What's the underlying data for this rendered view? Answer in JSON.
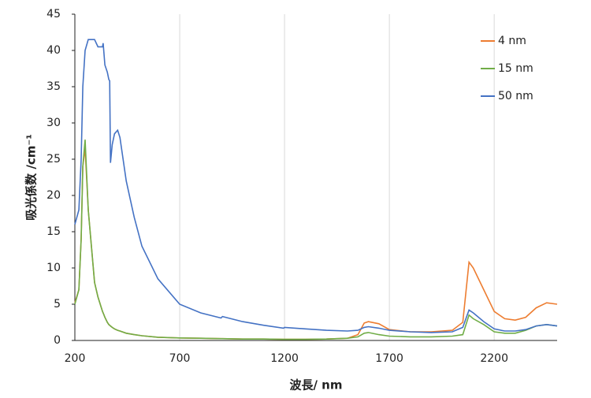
{
  "chart_data": {
    "type": "line",
    "x_label": "波長/ nm",
    "y_label": "吸光係数 /cm⁻¹",
    "x": [
      200,
      219,
      230,
      238,
      249,
      264,
      294,
      310,
      332,
      335,
      343,
      355,
      362,
      366,
      370,
      378,
      389,
      404,
      415,
      445,
      483,
      520,
      596,
      700,
      800,
      897,
      904,
      1000,
      1100,
      1195,
      1200,
      1300,
      1400,
      1500,
      1550,
      1580,
      1600,
      1650,
      1700,
      1800,
      1900,
      2000,
      2050,
      2080,
      2100,
      2150,
      2200,
      2250,
      2300,
      2350,
      2400,
      2450,
      2500
    ],
    "series": [
      {
        "name": "4 nm",
        "color": "#ed7d31",
        "values": [
          5.2,
          7,
          14,
          24,
          26.5,
          18,
          8,
          6,
          4,
          3.8,
          3.2,
          2.5,
          2.2,
          2.1,
          2.0,
          1.8,
          1.6,
          1.4,
          1.3,
          1.0,
          0.8,
          0.65,
          0.45,
          0.35,
          0.3,
          0.25,
          0.25,
          0.2,
          0.2,
          0.15,
          0.15,
          0.15,
          0.2,
          0.3,
          0.8,
          2.4,
          2.6,
          2.3,
          1.5,
          1.2,
          1.2,
          1.4,
          2.5,
          10.8,
          10,
          7,
          4,
          3,
          2.8,
          3.2,
          4.5,
          5.2,
          5.0
        ]
      },
      {
        "name": "15 nm",
        "color": "#70ad47",
        "values": [
          5.0,
          7,
          14,
          24,
          27.7,
          18,
          8,
          6,
          4,
          3.8,
          3.2,
          2.5,
          2.2,
          2.1,
          2.0,
          1.8,
          1.6,
          1.4,
          1.3,
          1.0,
          0.8,
          0.65,
          0.45,
          0.35,
          0.3,
          0.25,
          0.25,
          0.2,
          0.2,
          0.15,
          0.15,
          0.15,
          0.2,
          0.3,
          0.5,
          1.0,
          1.1,
          0.8,
          0.6,
          0.5,
          0.5,
          0.6,
          0.8,
          3.5,
          3,
          2.2,
          1.2,
          1,
          1,
          1.4,
          2,
          2.2,
          2
        ]
      },
      {
        "name": "50 nm",
        "color": "#4472c4",
        "values": [
          16,
          18,
          25,
          35,
          40,
          41.5,
          41.5,
          40.5,
          40.5,
          41,
          38,
          37,
          36,
          35.8,
          24.5,
          27,
          28.5,
          29,
          28,
          22,
          17,
          13,
          8.5,
          5,
          3.8,
          3.1,
          3.3,
          2.6,
          2.1,
          1.7,
          1.8,
          1.6,
          1.4,
          1.3,
          1.4,
          1.8,
          1.9,
          1.7,
          1.4,
          1.2,
          1.1,
          1.2,
          1.8,
          4.2,
          3.8,
          2.6,
          1.6,
          1.3,
          1.3,
          1.5,
          2.0,
          2.2,
          2.0
        ]
      }
    ],
    "xlim": [
      200,
      2500
    ],
    "xticks": [
      200,
      700,
      1200,
      1700,
      2200
    ],
    "ylim": [
      0,
      45
    ],
    "yticks": [
      0,
      5,
      10,
      15,
      20,
      25,
      30,
      35,
      40,
      45
    ],
    "grid": "x",
    "legend": "top-right"
  }
}
